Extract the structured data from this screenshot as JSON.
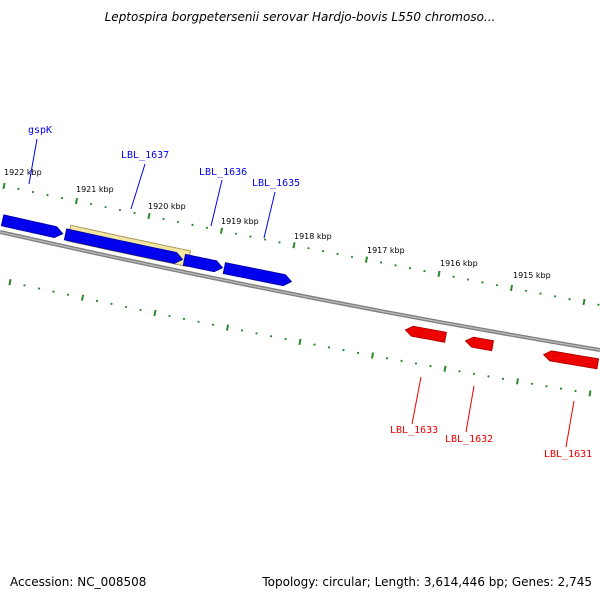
{
  "title": "Leptospira borgpetersenii serovar Hardjo-bovis L550 chromoso...",
  "accession": "Accession: NC_008508",
  "summary": "Topology: circular; Length: 3,614,446 bp; Genes: 2,745",
  "colors": {
    "forward_gene": "#0000ee",
    "reverse_gene": "#ee0000",
    "highlight": "#f3e6a0",
    "backbone": "#808080",
    "ticks": "#2a8a2a"
  },
  "scale": {
    "labels": [
      "1922 kbp",
      "1921 kbp",
      "1920 kbp",
      "1919 kbp",
      "1918 kbp",
      "1917 kbp",
      "1916 kbp",
      "1915 kbp"
    ]
  },
  "genes": {
    "forward": [
      {
        "name": "gspK"
      },
      {
        "name": "LBL_1637",
        "highlighted": true
      },
      {
        "name": "LBL_1636"
      },
      {
        "name": "LBL_1635"
      }
    ],
    "reverse": [
      {
        "name": "LBL_1633"
      },
      {
        "name": "LBL_1632"
      },
      {
        "name": "LBL_1631"
      }
    ]
  }
}
